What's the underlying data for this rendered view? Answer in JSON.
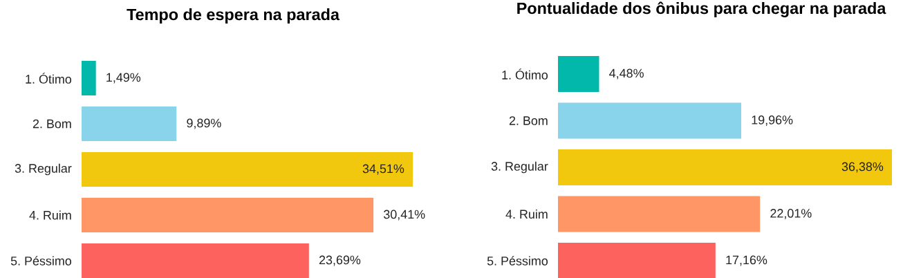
{
  "chart_data": [
    {
      "type": "bar",
      "orientation": "horizontal",
      "title": "Tempo de espera na parada",
      "categories": [
        "1. Ótimo",
        "2. Bom",
        "3. Regular",
        "4. Ruim",
        "5. Péssimo"
      ],
      "values": [
        1.49,
        9.89,
        34.51,
        30.41,
        23.69
      ],
      "value_labels": [
        "1,49%",
        "9,89%",
        "34,51%",
        "30,41%",
        "23,69%"
      ],
      "colors": [
        "#01b8aa",
        "#8ad4eb",
        "#f2c80f",
        "#fe9666",
        "#fd625e"
      ],
      "tick_labels": "y"
    },
    {
      "type": "bar",
      "orientation": "horizontal",
      "title": "Pontualidade dos ônibus para chegar na parada",
      "categories": [
        "1. Ótimo",
        "2. Bom",
        "3. Regular",
        "4. Ruim",
        "5. Péssimo"
      ],
      "values": [
        4.48,
        19.96,
        36.38,
        22.01,
        17.16
      ],
      "value_labels": [
        "4,48%",
        "19,96%",
        "36,38%",
        "22,01%",
        "17,16%"
      ],
      "colors": [
        "#01b8aa",
        "#8ad4eb",
        "#f2c80f",
        "#fe9666",
        "#fd625e"
      ],
      "tick_labels": "y"
    }
  ]
}
